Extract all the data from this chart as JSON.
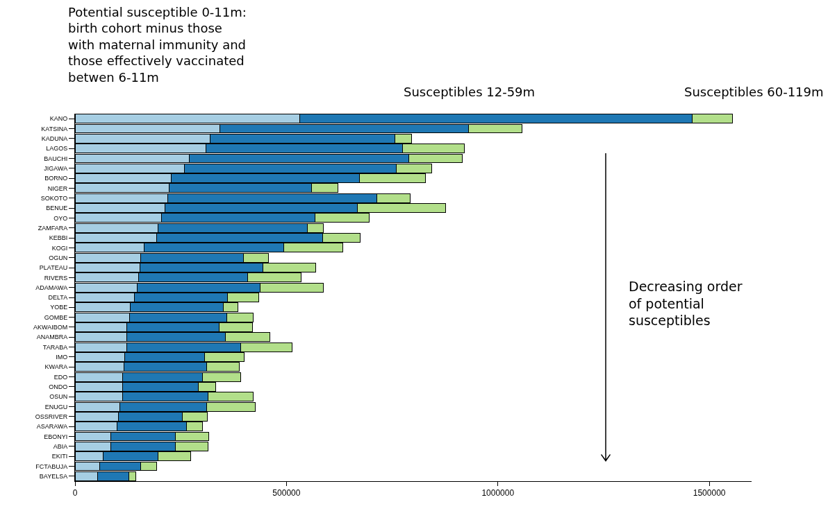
{
  "chart_data": {
    "type": "bar",
    "orientation": "horizontal",
    "stacked": true,
    "categories": [
      "KANO",
      "KATSINA",
      "KADUNA",
      "LAGOS",
      "BAUCHI",
      "JIGAWA",
      "BORNO",
      "NIGER",
      "SOKOTO",
      "BENUE",
      "OYO",
      "ZAMFARA",
      "KEBBI",
      "KOGI",
      "OGUN",
      "PLATEAU",
      "RIVERS",
      "ADAMAWA",
      "DELTA",
      "YOBE",
      "GOMBE",
      "AKWAIBOM",
      "ANAMBRA",
      "TARABA",
      "IMO",
      "KWARA",
      "EDO",
      "ONDO",
      "OSUN",
      "ENUGU",
      "OSSRIVER",
      "ASARAWA",
      "EBONYI",
      "ABIA",
      "EKITI",
      "FCTABUJA",
      "BAYELSA"
    ],
    "series": [
      {
        "color": "#a6cee3",
        "values": [
          531000,
          343000,
          320000,
          309000,
          270000,
          258000,
          228000,
          222000,
          219000,
          213000,
          204000,
          196000,
          193000,
          163000,
          155000,
          153000,
          150000,
          147000,
          140000,
          131000,
          129000,
          123000,
          122000,
          122000,
          118000,
          115000,
          113000,
          113000,
          113000,
          106000,
          103000,
          99000,
          84000,
          84000,
          67000,
          58000,
          54000
        ]
      },
      {
        "color": "#1f78b4",
        "values": [
          928000,
          587000,
          436000,
          465000,
          520000,
          501000,
          445000,
          337000,
          494000,
          455000,
          363000,
          353000,
          392000,
          331000,
          243000,
          292000,
          258000,
          291000,
          220000,
          219000,
          230000,
          218000,
          233000,
          270000,
          189000,
          197000,
          189000,
          179000,
          202000,
          206000,
          151000,
          165000,
          153000,
          153000,
          129000,
          97000,
          74000
        ]
      },
      {
        "color": "#b2df8a",
        "values": [
          95000,
          127000,
          40000,
          146000,
          126000,
          85000,
          156000,
          62000,
          79000,
          208000,
          128000,
          38000,
          89000,
          139000,
          59000,
          124000,
          127000,
          149000,
          74000,
          35000,
          62000,
          78000,
          106000,
          121000,
          93000,
          76000,
          89000,
          41000,
          106000,
          115000,
          59000,
          37000,
          79000,
          78000,
          77000,
          38000,
          15000
        ]
      }
    ],
    "xlim": [
      0,
      1600000
    ],
    "xticks": [
      0,
      500000,
      1000000,
      1500000
    ],
    "grid": false,
    "annotations": [
      "Potential susceptible 0-11m:\nbirth cohort minus those\nwith maternal immunity and\nthose effectively vaccinated\nbetwen 6-11m",
      "Susceptibles 12-59m",
      "Susceptibles 60-119m",
      "Decreasing order\nof potential\nsusceptibles"
    ]
  }
}
